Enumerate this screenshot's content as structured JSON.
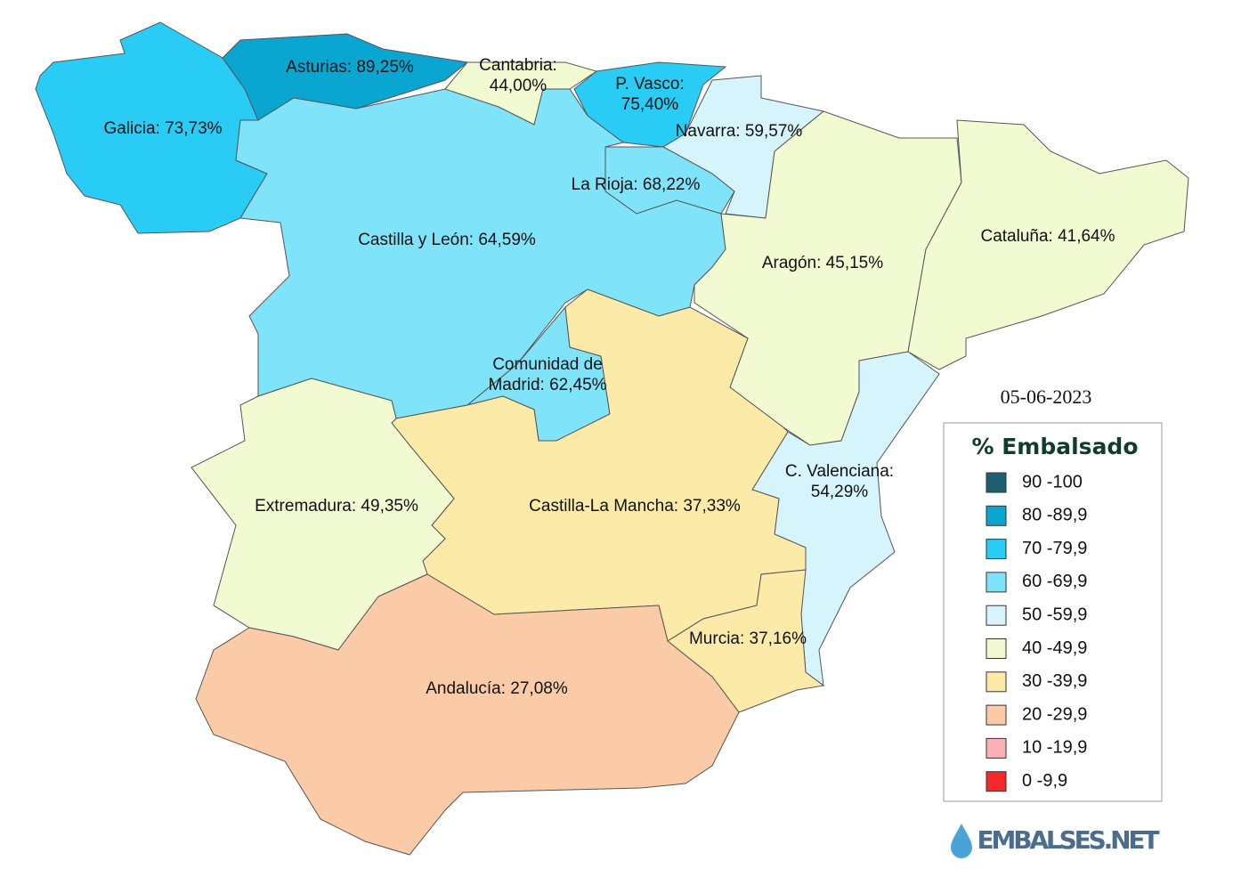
{
  "map": {
    "regions": [
      {
        "label": [
          "Galicia: 73,73%"
        ],
        "color": "#28ccf5"
      },
      {
        "label": [
          "Asturias: 89,25%"
        ],
        "color": "#0aa6d2"
      },
      {
        "label": [
          "Cantabria:",
          "44,00%"
        ],
        "color": "#f2fad2"
      },
      {
        "label": [
          "P. Vasco:",
          "75,40%"
        ],
        "color": "#28ccf5"
      },
      {
        "label": [
          "Navarra: 59,57%"
        ],
        "color": "#d5f4fc"
      },
      {
        "label": [
          "La Rioja: 68,22%"
        ],
        "color": "#7fe3fa"
      },
      {
        "label": [
          "Castilla y León: 64,59%"
        ],
        "color": "#7fe3fa"
      },
      {
        "label": [
          "Comunidad de",
          "Madrid: 62,45%"
        ],
        "color": "#7fe3fa"
      },
      {
        "label": [
          "Aragón: 45,15%"
        ],
        "color": "#f2fad2"
      },
      {
        "label": [
          "Cataluña: 41,64%"
        ],
        "color": "#f2fad2"
      },
      {
        "label": [
          "C. Valenciana:",
          "54,29%"
        ],
        "color": "#d5f4fc"
      },
      {
        "label": [
          "Castilla-La Mancha: 37,33%"
        ],
        "color": "#fceaa8"
      },
      {
        "label": [
          "Murcia: 37,16%"
        ],
        "color": "#fceaa8"
      },
      {
        "label": [
          "Extremadura: 49,35%"
        ],
        "color": "#f2fad2"
      },
      {
        "label": [
          "Andalucía: 27,08%"
        ],
        "color": "#fbcba8"
      }
    ],
    "date": "05-06-2023",
    "legend": {
      "title": "% Embalsado",
      "items": [
        {
          "label": "90 -100",
          "color": "#1e5f74"
        },
        {
          "label": "80 -89,9",
          "color": "#0aa6d2"
        },
        {
          "label": "70 -79,9",
          "color": "#28ccf5"
        },
        {
          "label": "60 -69,9",
          "color": "#7fe3fa"
        },
        {
          "label": "50 -59,9",
          "color": "#d5f4fc"
        },
        {
          "label": "40 -49,9",
          "color": "#f2fad2"
        },
        {
          "label": "30 -39,9",
          "color": "#fceaa8"
        },
        {
          "label": "20 -29,9",
          "color": "#fbcba8"
        },
        {
          "label": "10 -19,9",
          "color": "#fbb0b8"
        },
        {
          "label": "0 -9,9",
          "color": "#f42a2a"
        }
      ]
    },
    "logo": "EMBALSES.NET"
  }
}
